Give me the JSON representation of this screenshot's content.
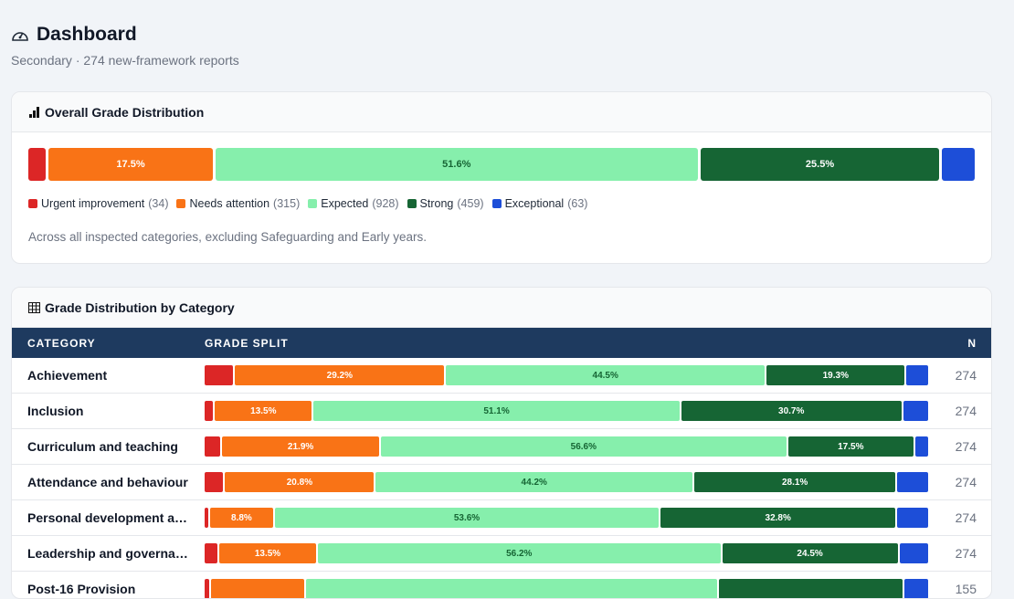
{
  "header": {
    "title": "Dashboard",
    "subtitle": "Secondary · 274 new-framework reports"
  },
  "overall": {
    "title": "Overall Grade Distribution",
    "grades": [
      {
        "name": "Urgent improvement",
        "count": 34,
        "count_label": "(34)",
        "color": "#dc2626"
      },
      {
        "name": "Needs attention",
        "count": 315,
        "count_label": "(315)",
        "color": "#f97316"
      },
      {
        "name": "Expected",
        "count": 928,
        "count_label": "(928)",
        "color": "#86efac"
      },
      {
        "name": "Strong",
        "count": 459,
        "count_label": "(459)",
        "color": "#166534"
      },
      {
        "name": "Exceptional",
        "count": 63,
        "count_label": "(63)",
        "color": "#1d4ed8"
      }
    ],
    "bar_labels": [
      null,
      "17.5%",
      "51.6%",
      "25.5%",
      null
    ],
    "note": "Across all inspected categories, excluding Safeguarding and Early years."
  },
  "by_category": {
    "title": "Grade Distribution by Category",
    "columns": [
      "CATEGORY",
      "GRADE SPLIT",
      "N"
    ],
    "rows": [
      {
        "category": "Achievement",
        "values": [
          4.0,
          29.2,
          44.5,
          19.3,
          3.0
        ],
        "value_labels": [
          null,
          "29.2%",
          "44.5%",
          "19.3%",
          null
        ],
        "n": 274
      },
      {
        "category": "Inclusion",
        "values": [
          1.2,
          13.5,
          51.1,
          30.7,
          3.5
        ],
        "value_labels": [
          null,
          "13.5%",
          "51.1%",
          "30.7%",
          null
        ],
        "n": 274
      },
      {
        "category": "Curriculum and teaching",
        "values": [
          2.2,
          21.9,
          56.6,
          17.5,
          1.8
        ],
        "value_labels": [
          null,
          "21.9%",
          "56.6%",
          "17.5%",
          null
        ],
        "n": 274
      },
      {
        "category": "Attendance and behaviour",
        "values": [
          2.6,
          20.8,
          44.2,
          28.1,
          4.3
        ],
        "value_labels": [
          null,
          "20.8%",
          "44.2%",
          "28.1%",
          null
        ],
        "n": 274
      },
      {
        "category": "Personal development a…",
        "values": [
          0.5,
          8.8,
          53.6,
          32.8,
          4.3
        ],
        "value_labels": [
          null,
          "8.8%",
          "53.6%",
          "32.8%",
          null
        ],
        "n": 274
      },
      {
        "category": "Leadership and governa…",
        "values": [
          1.8,
          13.5,
          56.2,
          24.5,
          4.0
        ],
        "value_labels": [
          null,
          "13.5%",
          "56.2%",
          "24.5%",
          null
        ],
        "n": 274
      },
      {
        "category": "Post-16 Provision",
        "values": [
          0.6,
          13.0,
          57.2,
          25.5,
          3.3
        ],
        "value_labels": [
          null,
          null,
          null,
          null,
          null
        ],
        "n": 155
      }
    ]
  }
}
